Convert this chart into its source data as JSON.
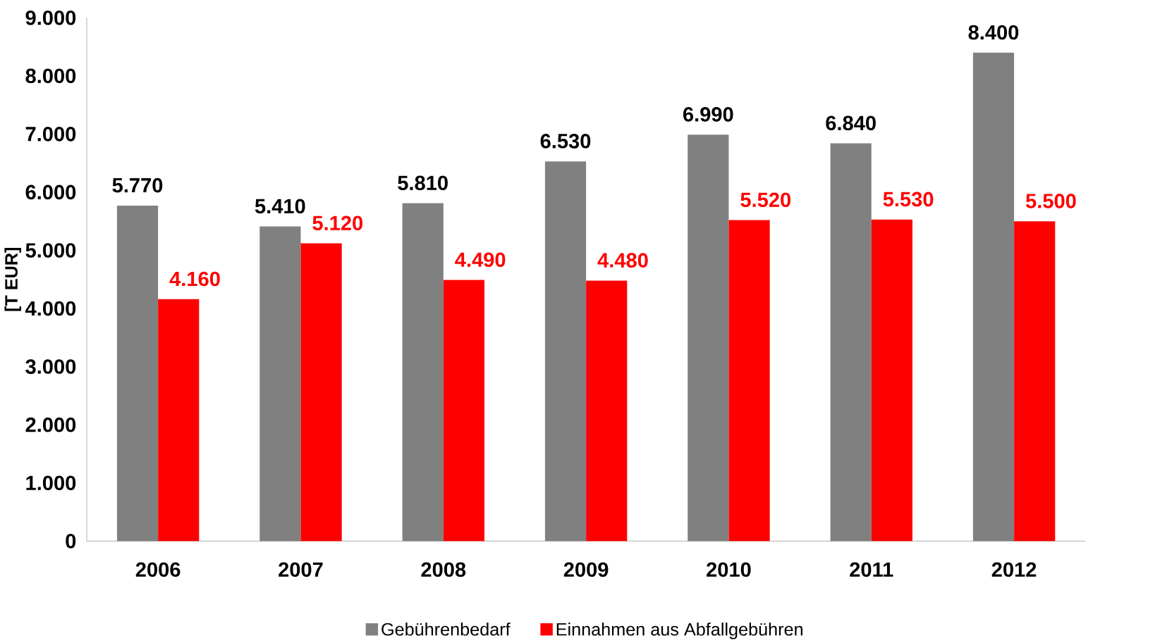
{
  "chart_data": {
    "type": "bar",
    "ylabel": "[T EUR]",
    "categories": [
      "2006",
      "2007",
      "2008",
      "2009",
      "2010",
      "2011",
      "2012"
    ],
    "series": [
      {
        "name": "Gebührenbedarf",
        "color": "#808080",
        "values": [
          5770,
          5410,
          5810,
          6530,
          6990,
          6840,
          8400
        ],
        "value_labels": [
          "5.770",
          "5.410",
          "5.810",
          "6.530",
          "6.990",
          "6.840",
          "8.400"
        ]
      },
      {
        "name": "Einnahmen aus Abfallgebühren",
        "color": "#ff0000",
        "values": [
          4160,
          5120,
          4490,
          4480,
          5520,
          5530,
          5500
        ],
        "value_labels": [
          "4.160",
          "5.120",
          "4.490",
          "4.480",
          "5.520",
          "5.530",
          "5.500"
        ]
      }
    ],
    "ylim": [
      0,
      9000
    ],
    "yticks": [
      0,
      {
        "value": 1000,
        "label": "1.000"
      },
      {
        "value": 2000,
        "label": "2.000"
      },
      {
        "value": 3000,
        "label": "3.000"
      },
      {
        "value": 4000,
        "label": "4.000"
      },
      {
        "value": 5000,
        "label": "5.000"
      },
      {
        "value": 6000,
        "label": "6.000"
      },
      {
        "value": 7000,
        "label": "7.000"
      },
      {
        "value": 8000,
        "label": "8.000"
      },
      {
        "value": 9000,
        "label": "9.000"
      }
    ],
    "grid": false,
    "legend": "bottom"
  }
}
